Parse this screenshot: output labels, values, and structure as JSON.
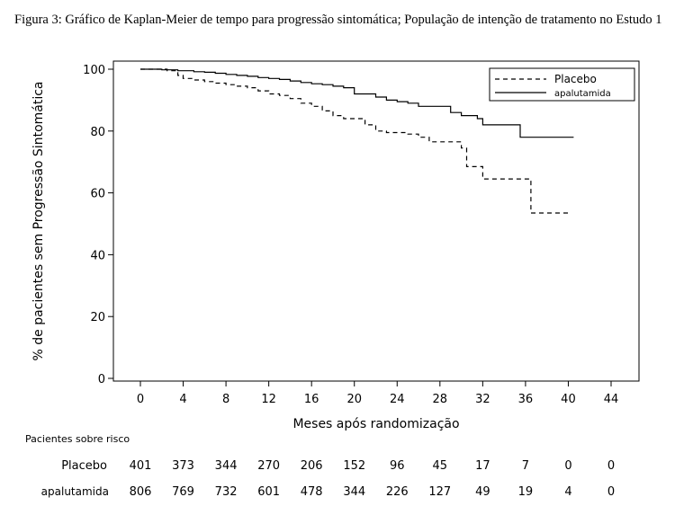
{
  "caption": "Figura 3: Gráfico de Kaplan-Meier de tempo para progressão sintomática; População de intenção de tratamento no Estudo 1",
  "chart_data": {
    "type": "line",
    "subtype": "kaplan-meier step",
    "xlabel": "Meses após randomização",
    "ylabel": "% de pacientes sem Progressão Sintomática",
    "xlim": [
      -2.5,
      46.5
    ],
    "ylim": [
      0,
      100
    ],
    "x_ticks": [
      0,
      4,
      8,
      12,
      16,
      20,
      24,
      28,
      32,
      36,
      40,
      44
    ],
    "y_ticks": [
      0,
      20,
      40,
      60,
      80,
      100
    ],
    "grid": false,
    "legend_position": "top-right",
    "series": [
      {
        "name": "Placebo",
        "style": "dashed",
        "x": [
          0,
          2.5,
          3.5,
          4,
          5,
          6,
          7,
          8,
          9,
          10,
          11,
          12,
          13,
          14,
          15,
          16,
          17,
          18,
          19,
          21,
          22,
          23,
          25,
          26,
          27,
          30,
          30.5,
          32,
          33,
          36.5,
          37,
          40
        ],
        "y": [
          100,
          99.5,
          98,
          97,
          96.5,
          96,
          95.5,
          95,
          94.5,
          94,
          93,
          92,
          91.5,
          90.5,
          89,
          88,
          86.5,
          85,
          84,
          82,
          80,
          79.5,
          79,
          78,
          76.5,
          74.5,
          68.5,
          64.5,
          64.5,
          53.5,
          53.5,
          53.5
        ]
      },
      {
        "name": "apalutamida",
        "style": "solid",
        "x": [
          0,
          2,
          3.5,
          5,
          6,
          7,
          8,
          9,
          10,
          11,
          12,
          13,
          14,
          15,
          16,
          17,
          18,
          19,
          20,
          22,
          23,
          24,
          25,
          26,
          29,
          30,
          31.5,
          32,
          35,
          35.5,
          40.5
        ],
        "y": [
          100,
          99.8,
          99.5,
          99.2,
          99,
          98.7,
          98.3,
          98,
          97.7,
          97.3,
          97,
          96.7,
          96.2,
          95.7,
          95.3,
          95,
          94.5,
          94,
          92,
          91,
          90,
          89.5,
          89,
          88,
          86,
          85,
          84,
          82,
          82,
          78,
          78
        ]
      }
    ],
    "risk_table": {
      "title": "Pacientes sobre risco",
      "rows": [
        {
          "label": "Placebo",
          "values": [
            401,
            373,
            344,
            270,
            206,
            152,
            96,
            45,
            17,
            7,
            0,
            0
          ]
        },
        {
          "label": "apalutamida",
          "values": [
            806,
            769,
            732,
            601,
            478,
            344,
            226,
            127,
            49,
            19,
            4,
            0
          ]
        }
      ]
    }
  }
}
